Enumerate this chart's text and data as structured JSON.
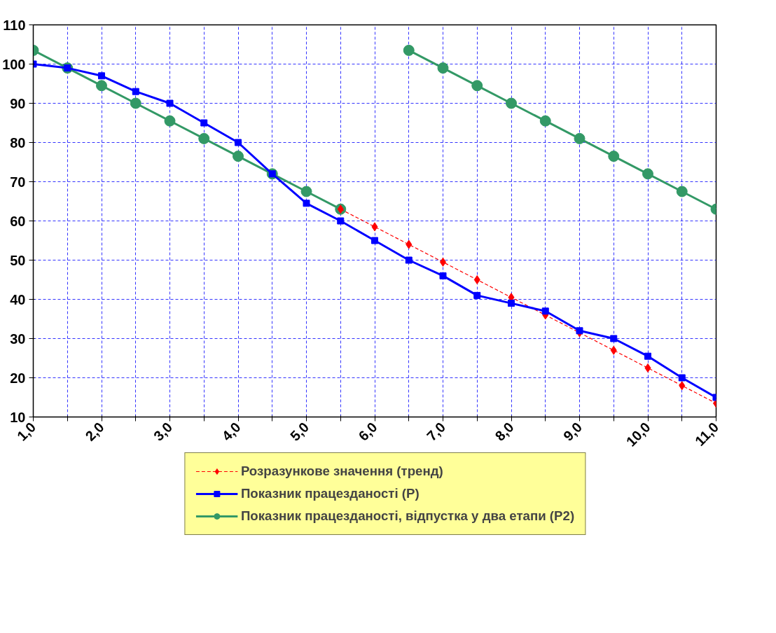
{
  "chart_data": {
    "type": "line",
    "x": [
      1.0,
      1.5,
      2.0,
      2.5,
      3.0,
      3.5,
      4.0,
      4.5,
      5.0,
      5.5,
      6.0,
      6.5,
      7.0,
      7.5,
      8.0,
      8.5,
      9.0,
      9.5,
      10.0,
      10.5,
      11.0
    ],
    "series": [
      {
        "name": "Розразункове значення (тренд)",
        "color": "#ff0000",
        "marker": "diamond",
        "line_style": "dashed",
        "values": [
          null,
          null,
          null,
          null,
          null,
          null,
          null,
          null,
          null,
          63,
          58.5,
          54,
          49.5,
          45,
          40.5,
          36,
          31.5,
          27,
          22.5,
          18,
          13.5
        ]
      },
      {
        "name": "Показник працезданості (P)",
        "color": "#0000ff",
        "marker": "square",
        "line_style": "solid",
        "values": [
          100,
          99,
          97,
          93,
          90,
          85,
          80,
          72,
          64.5,
          60,
          55,
          50,
          46,
          41,
          39,
          37,
          32,
          30,
          25.5,
          20,
          15
        ]
      },
      {
        "name": "Показник працезданості, відпустка у два етапи (P2)",
        "color": "#339966",
        "marker": "circle",
        "line_style": "solid",
        "values": [
          103.5,
          99,
          94.5,
          90,
          85.5,
          81,
          76.5,
          72,
          67.5,
          63,
          null,
          103.5,
          99,
          94.5,
          90,
          85.5,
          81,
          76.5,
          72,
          67.5,
          63
        ]
      }
    ],
    "xlim": [
      1.0,
      11.0
    ],
    "xticks": [
      {
        "value": 1.0,
        "label": "1,0"
      },
      {
        "value": 1.5,
        "label": null
      },
      {
        "value": 2.0,
        "label": "2,0"
      },
      {
        "value": 2.5,
        "label": null
      },
      {
        "value": 3.0,
        "label": "3,0"
      },
      {
        "value": 3.5,
        "label": null
      },
      {
        "value": 4.0,
        "label": "4,0"
      },
      {
        "value": 4.5,
        "label": null
      },
      {
        "value": 5.0,
        "label": "5,0"
      },
      {
        "value": 5.5,
        "label": null
      },
      {
        "value": 6.0,
        "label": "6,0"
      },
      {
        "value": 6.5,
        "label": null
      },
      {
        "value": 7.0,
        "label": "7,0"
      },
      {
        "value": 7.5,
        "label": null
      },
      {
        "value": 8.0,
        "label": "8,0"
      },
      {
        "value": 8.5,
        "label": null
      },
      {
        "value": 9.0,
        "label": "9,0"
      },
      {
        "value": 9.5,
        "label": null
      },
      {
        "value": 10.0,
        "label": "10,0"
      },
      {
        "value": 10.5,
        "label": null
      },
      {
        "value": 11.0,
        "label": "11,0"
      }
    ],
    "ylim": [
      10,
      110
    ],
    "yticks": [
      10,
      20,
      30,
      40,
      50,
      60,
      70,
      80,
      90,
      100,
      110
    ],
    "grid": true,
    "legend": "bottom"
  }
}
